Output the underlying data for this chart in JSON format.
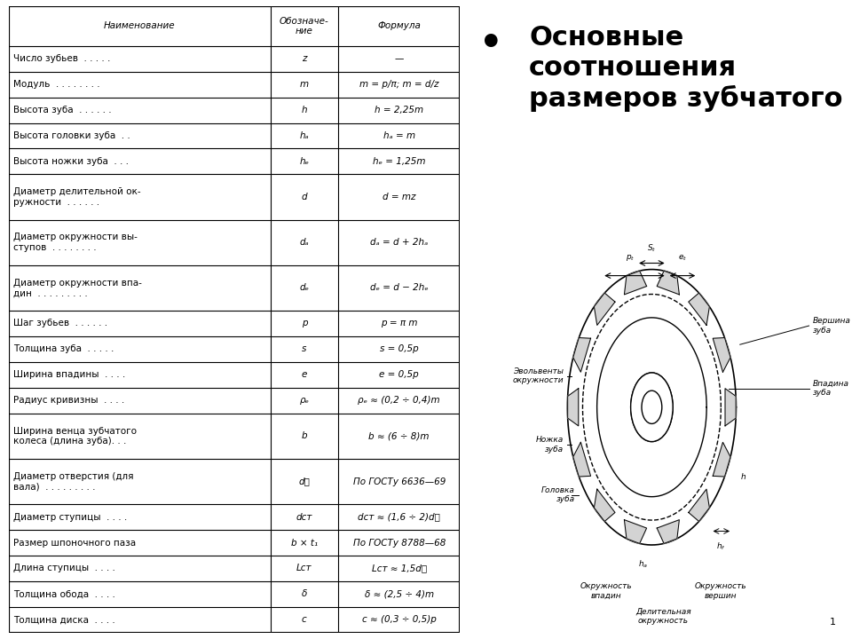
{
  "title_bullet": "•",
  "title_text": "Основные\nсоотношения\nразмеров зубчатого",
  "col_headers": [
    "Наименование",
    "Обозначе-\nние",
    "Формула"
  ],
  "rows": [
    [
      "Число зубьев  . . . . .",
      "z",
      "—"
    ],
    [
      "Модуль  . . . . . . . .",
      "m",
      "m = p/π; m = d/z"
    ],
    [
      "Высота зуба  . . . . . .",
      "h",
      "h = 2,25m"
    ],
    [
      "Высота головки зуба  . .",
      "hₐ",
      "hₐ = m"
    ],
    [
      "Высота ножки зуба  . . .",
      "hₑ",
      "hₑ = 1,25m"
    ],
    [
      "Диаметр делительной ок-\nружности  . . . . . .",
      "d",
      "d = mz"
    ],
    [
      "Диаметр окружности вы-\nступов  . . . . . . . .",
      "dₐ",
      "dₐ = d + 2hₐ"
    ],
    [
      "Диаметр окружности впа-\nдин  . . . . . . . . .",
      "dₑ",
      "dₑ = d − 2hₑ"
    ],
    [
      "Шаг зубьев  . . . . . .",
      "p",
      "p = π m"
    ],
    [
      "Толщина зуба  . . . . .",
      "s",
      "s = 0,5p"
    ],
    [
      "Ширина впадины  . . . .",
      "e",
      "e = 0,5p"
    ],
    [
      "Радиус кривизны  . . . .",
      "ρₑ",
      "ρₑ ≈ (0,2 ÷ 0,4)m"
    ],
    [
      "Ширина венца зубчатого\nколеса (длина зуба). . .",
      "b",
      "b ≈ (6 ÷ 8)m"
    ],
    [
      "Диаметр отверстия (для\nвала)  . . . . . . . . .",
      "dᵜ",
      "По ГОСТу 6636—69"
    ],
    [
      "Диаметр ступицы  . . . .",
      "dст",
      "dст ≈ (1,6 ÷ 2)dᵜ"
    ],
    [
      "Размер шпоночного паза",
      "b × t₁",
      "По ГОСТу 8788—68"
    ],
    [
      "Длина ступицы  . . . .",
      "Lст",
      "Lст ≈ 1,5dᵜ"
    ],
    [
      "Толщина обода  . . . .",
      "δ",
      "δ ≈ (2,5 ÷ 4)m"
    ],
    [
      "Толщина диска  . . . .",
      "c",
      "c ≈ (0,3 ÷ 0,5)p"
    ]
  ],
  "bg_color": "#ffffff",
  "table_border_color": "#000000",
  "text_color": "#000000",
  "header_bg": "#ffffff",
  "font_size_table": 7.5,
  "font_size_title": 22,
  "gear_image_placeholder": true
}
